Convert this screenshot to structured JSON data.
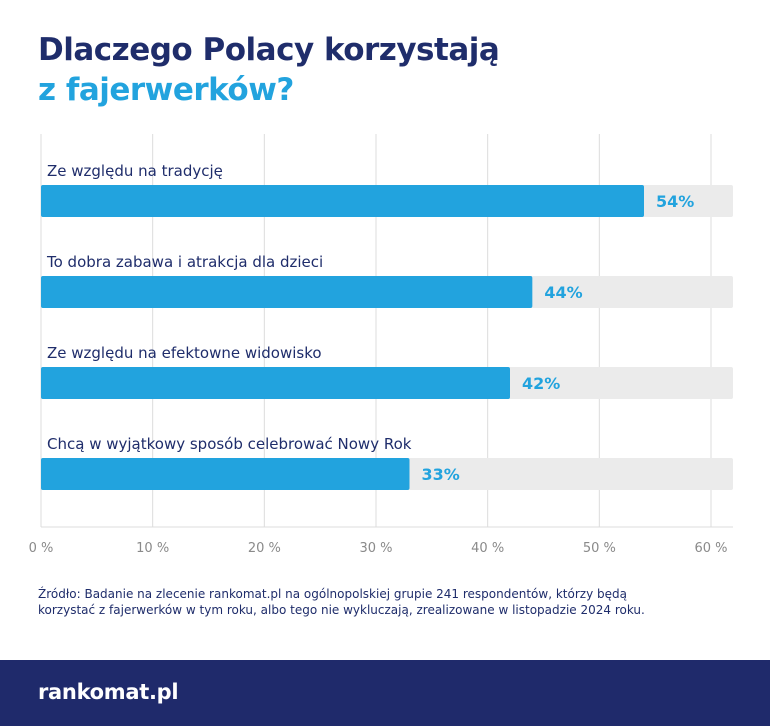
{
  "title": {
    "line1": "Dlaczego Polacy korzystają",
    "line2": "z fajerwerków?"
  },
  "chart_data": {
    "type": "bar",
    "orientation": "horizontal",
    "categories": [
      "Ze względu na tradycję",
      "To dobra zabawa i atrakcja dla dzieci",
      "Ze względu na efektowne widowisko",
      "Chcą w wyjątkowy sposób celebrować Nowy Rok"
    ],
    "values": [
      54,
      44,
      42,
      33
    ],
    "value_labels": [
      "54%",
      "44%",
      "42%",
      "33%"
    ],
    "xlim": [
      0,
      60
    ],
    "xticks": [
      0,
      10,
      20,
      30,
      40,
      50,
      60
    ],
    "xtick_labels": [
      "0 %",
      "10 %",
      "20 %",
      "30 %",
      "40 %",
      "50 %",
      "60 %"
    ],
    "grid": true,
    "colors": {
      "bar": "#22a3de",
      "track": "#ebebeb",
      "label": "#22a3de",
      "text": "#1f2d6b",
      "grid": "#dcdcdc",
      "tick": "#8a8a8a"
    }
  },
  "source": "Źródło: Badanie na zlecenie rankomat.pl na ogólnopolskiej grupie 241 respondentów, którzy będą korzystać z fajerwerków w tym roku, albo tego nie wykluczają, zrealizowane w listopadzie 2024 roku.",
  "footer": {
    "logo": "rankomat.pl",
    "background": "#1f2a6b"
  }
}
